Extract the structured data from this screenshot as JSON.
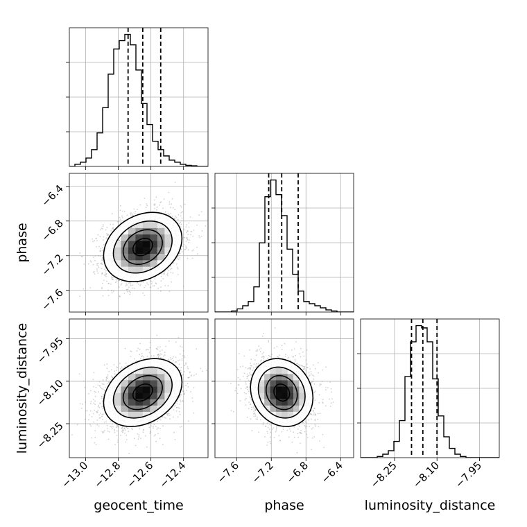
{
  "chart_data": {
    "type": "corner",
    "grid": true,
    "parameters": [
      {
        "label": "geocent_time",
        "range": [
          -13.1,
          -12.25
        ],
        "ticks": [
          -13.0,
          -12.8,
          -12.6,
          -12.4
        ],
        "tick_labels": [
          "−13.0",
          "−12.8",
          "−12.6",
          "−12.4"
        ],
        "quantiles": [
          -12.74,
          -12.65,
          -12.54
        ]
      },
      {
        "label": "phase",
        "range": [
          -7.85,
          -6.25
        ],
        "ticks": [
          -7.6,
          -7.2,
          -6.8,
          -6.4
        ],
        "tick_labels": [
          "−7.6",
          "−7.2",
          "−6.8",
          "−6.4"
        ],
        "quantiles": [
          -7.23,
          -7.08,
          -6.89
        ]
      },
      {
        "label": "luminosity_distance",
        "range": [
          -8.37,
          -7.88
        ],
        "ticks": [
          -8.25,
          -8.1,
          -7.95
        ],
        "tick_labels": [
          "−8.25",
          "−8.10",
          "−7.95"
        ],
        "quantiles": [
          -8.19,
          -8.15,
          -8.1
        ]
      }
    ],
    "histograms": [
      {
        "parameter": "geocent_time",
        "edges_range": [
          -13.1,
          -12.25
        ],
        "bins": 25,
        "counts": [
          0,
          1,
          2,
          4,
          8,
          16,
          28,
          44,
          56,
          60,
          63,
          58,
          46,
          30,
          20,
          12,
          8,
          5,
          3,
          2,
          1,
          0.5,
          0.3,
          0,
          0
        ]
      },
      {
        "parameter": "phase",
        "edges_range": [
          -7.85,
          -6.25
        ],
        "bins": 25,
        "counts": [
          0,
          0,
          0,
          0.5,
          1.5,
          3,
          5,
          12,
          33,
          55,
          63,
          56,
          46,
          30,
          18,
          10,
          5,
          4,
          3,
          2,
          1,
          0.5,
          0,
          0,
          0
        ]
      },
      {
        "parameter": "luminosity_distance",
        "edges_range": [
          -8.37,
          -7.88
        ],
        "bins": 25,
        "counts": [
          0,
          0,
          0,
          0.5,
          1.5,
          3,
          7,
          16,
          35,
          50,
          57,
          56,
          50,
          34,
          18,
          9,
          4,
          1.5,
          0.5,
          0,
          0,
          0,
          0,
          0,
          0
        ]
      }
    ],
    "joint_2d": [
      {
        "x": "geocent_time",
        "y": "phase",
        "mean": [
          -12.65,
          -7.1
        ],
        "std": [
          0.12,
          0.2
        ],
        "correlation": 0.25
      },
      {
        "x": "geocent_time",
        "y": "luminosity_distance",
        "mean": [
          -12.65,
          -8.14
        ],
        "std": [
          0.12,
          0.06
        ],
        "correlation": 0.3
      },
      {
        "x": "phase",
        "y": "luminosity_distance",
        "mean": [
          -7.08,
          -8.14
        ],
        "std": [
          0.18,
          0.06
        ],
        "correlation": -0.15
      }
    ],
    "contour_levels_sigma": [
      0.5,
      1.0,
      1.5,
      2.0
    ]
  }
}
